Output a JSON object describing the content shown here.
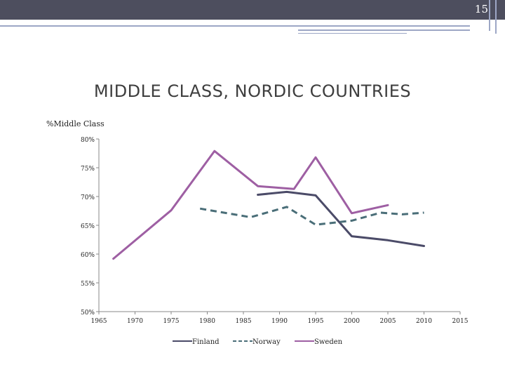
{
  "slide": {
    "number": "15"
  },
  "chart_data": {
    "type": "line",
    "title": "MIDDLE CLASS, NORDIC COUNTRIES",
    "ylabel": "%Middle Class",
    "xlabel": "",
    "xlim": [
      1965,
      2015
    ],
    "ylim": [
      50,
      80
    ],
    "x_ticks": [
      "1965",
      "1970",
      "1975",
      "1980",
      "1985",
      "1990",
      "1995",
      "2000",
      "2005",
      "2010",
      "2015"
    ],
    "y_ticks": [
      "80%",
      "75%",
      "70%",
      "65%",
      "60%",
      "55%",
      "50%"
    ],
    "y_tick_values": [
      80,
      75,
      70,
      65,
      60,
      55,
      50
    ],
    "grid": false,
    "legend_position": "bottom",
    "series": [
      {
        "name": "Finland",
        "color": "#4b4b68",
        "dash": "solid",
        "x": [
          1987,
          1991,
          1995,
          2000,
          2005,
          2010
        ],
        "y": [
          70.3,
          70.8,
          70.2,
          63.1,
          62.4,
          61.4
        ]
      },
      {
        "name": "Norway",
        "color": "#4a6e78",
        "dash": "dashed",
        "x": [
          1979,
          1986,
          1991,
          1995,
          2000,
          2004,
          2007,
          2010
        ],
        "y": [
          67.9,
          66.4,
          68.2,
          65.1,
          65.8,
          67.2,
          66.9,
          67.2
        ]
      },
      {
        "name": "Sweden",
        "color": "#9e5fa3",
        "dash": "solid",
        "x": [
          1967,
          1975,
          1981,
          1987,
          1992,
          1995,
          2000,
          2005
        ],
        "y": [
          59.2,
          67.6,
          77.9,
          71.8,
          71.3,
          76.8,
          67.1,
          68.5
        ]
      }
    ]
  }
}
